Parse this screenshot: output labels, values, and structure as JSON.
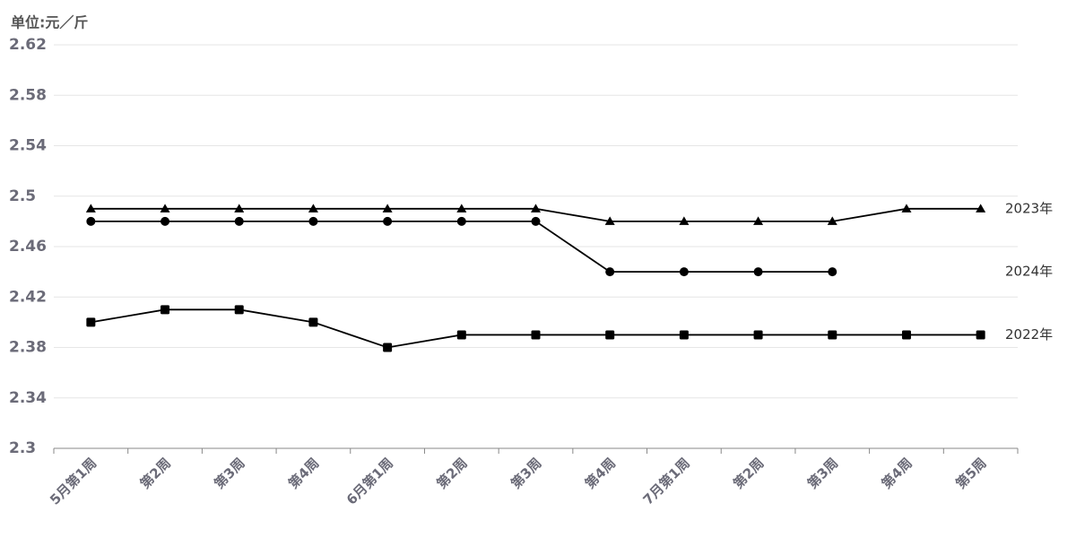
{
  "chart_data": {
    "type": "line",
    "y_label": "单位:元／斤",
    "categories": [
      "5月第1周",
      "第2周",
      "第3周",
      "第4周",
      "6月第1周",
      "第2周",
      "第3周",
      "第4周",
      "7月第1周",
      "第2周",
      "第3周",
      "第4周",
      "第5周"
    ],
    "series": [
      {
        "name": "2023年",
        "color": "#000000",
        "marker": "triangle",
        "values": [
          2.49,
          2.49,
          2.49,
          2.49,
          2.49,
          2.49,
          2.49,
          2.48,
          2.48,
          2.48,
          2.48,
          2.49,
          2.49
        ]
      },
      {
        "name": "2024年",
        "color": "#000000",
        "marker": "circle",
        "values": [
          2.48,
          2.48,
          2.48,
          2.48,
          2.48,
          2.48,
          2.48,
          2.44,
          2.44,
          2.44,
          2.44,
          null,
          null
        ]
      },
      {
        "name": "2022年",
        "color": "#000000",
        "marker": "square",
        "values": [
          2.4,
          2.41,
          2.41,
          2.4,
          2.38,
          2.39,
          2.39,
          2.39,
          2.39,
          2.39,
          2.39,
          2.39,
          2.39
        ]
      }
    ],
    "ylim": [
      2.3,
      2.62
    ],
    "yticks": [
      2.3,
      2.34,
      2.38,
      2.42,
      2.46,
      2.5,
      2.54,
      2.58,
      2.62
    ],
    "grid": true
  }
}
